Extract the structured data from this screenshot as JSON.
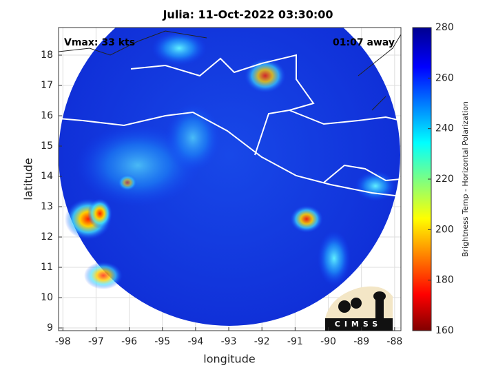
{
  "chart_data": {
    "type": "map",
    "title": "Julia: 11-Oct-2022 03:30:00",
    "annotations": [
      "Vmax: 33 kts",
      "01:07 away",
      "CIMSS"
    ],
    "x_label": "longitude",
    "y_label": "latitude",
    "xlim": [
      -98.13,
      -87.81
    ],
    "xticks": [
      -98,
      -97,
      -96,
      -95,
      -94,
      -93,
      -92,
      -91,
      -90,
      -89,
      -88
    ],
    "ylim": [
      8.91,
      18.91
    ],
    "yticks": [
      9,
      10,
      11,
      12,
      13,
      14,
      15,
      16,
      17,
      18
    ],
    "grid": true,
    "colorbar": {
      "label": "Brightness Temp - Horizontal Polarization",
      "clim": [
        160,
        280
      ],
      "ticks": [
        160,
        180,
        200,
        220,
        240,
        260,
        280
      ]
    }
  }
}
